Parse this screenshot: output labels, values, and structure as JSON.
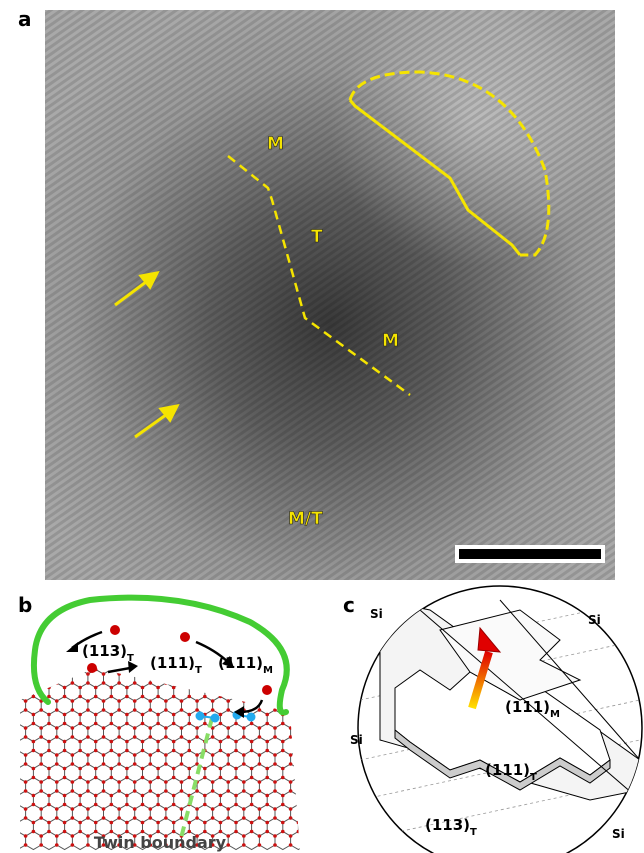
{
  "panel_a": {
    "label": "a",
    "phase_labels": [
      "M",
      "T",
      "M",
      "M/T"
    ]
  },
  "panel_b": {
    "label": "b",
    "planes": [
      {
        "miller": "(113)",
        "sub": "T"
      },
      {
        "miller": "(111)",
        "sub": "T"
      },
      {
        "miller": "(111)",
        "sub": "M"
      }
    ],
    "caption": "Twin boundary"
  },
  "panel_c": {
    "label": "c",
    "si_labels": [
      "Si",
      "Si",
      "Si",
      "Si"
    ],
    "planes": [
      {
        "miller": "(111)",
        "sub": "M"
      },
      {
        "miller": "(111)",
        "sub": "T"
      },
      {
        "miller": "(113)",
        "sub": "T"
      }
    ]
  }
}
